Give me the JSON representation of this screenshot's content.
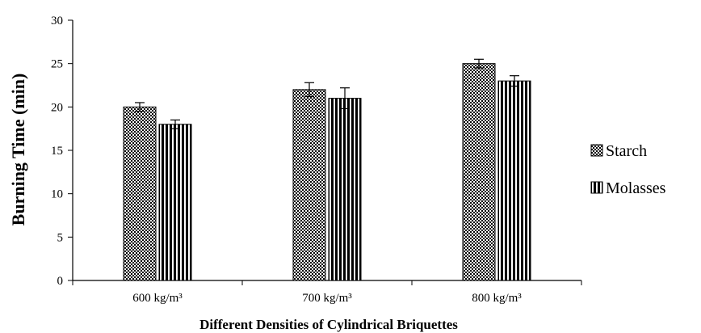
{
  "chart_data": {
    "type": "bar",
    "title": "",
    "xlabel": "Different Densities of Cylindrical Briquettes",
    "ylabel": "Burning Time (min)",
    "categories": [
      "600 kg/m³",
      "700 kg/m³",
      "800 kg/m³"
    ],
    "series": [
      {
        "name": "Starch",
        "values": [
          20,
          22,
          25
        ],
        "errors": [
          0.5,
          0.8,
          0.5
        ],
        "pattern": "checker"
      },
      {
        "name": "Molasses",
        "values": [
          18,
          21,
          23
        ],
        "errors": [
          0.5,
          1.2,
          0.6
        ],
        "pattern": "vertical-stripes"
      }
    ],
    "ylim": [
      0,
      30
    ],
    "yticks": [
      0,
      5,
      10,
      15,
      20,
      25,
      30
    ],
    "grid": false,
    "legend_position": "right"
  }
}
